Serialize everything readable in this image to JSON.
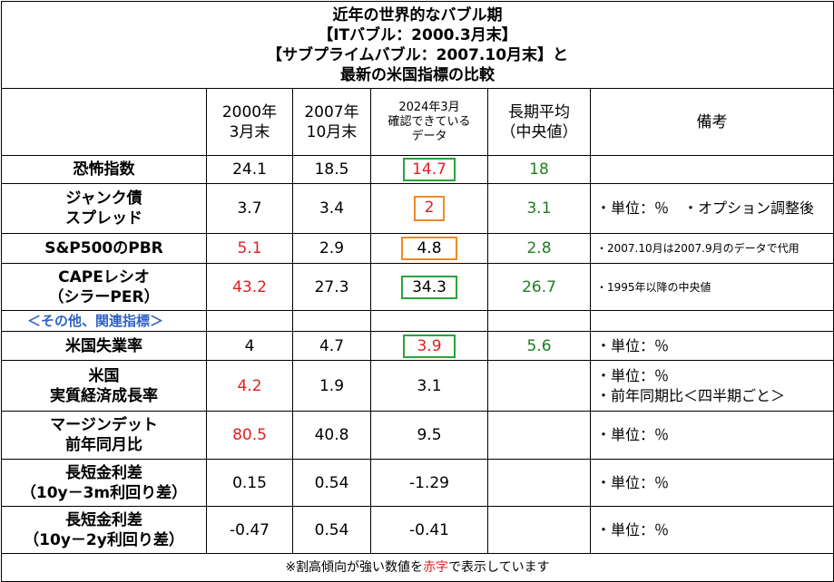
{
  "title": {
    "line1": "近年の世界的なバブル期",
    "line2": "【ITバブル：2000.3月末】",
    "line3": "【サブプライムバブル：2007.10月末】と",
    "line4": "最新の米国指標の比較"
  },
  "headers": {
    "col2000_l1": "2000年",
    "col2000_l2": "3月末",
    "col2007_l1": "2007年",
    "col2007_l2": "10月末",
    "col2024_l1": "2024年3月",
    "col2024_l2": "確認できている",
    "col2024_l3": "データ",
    "longterm_l1": "長期平均",
    "longterm_l2": "（中央値）",
    "notes": "備考"
  },
  "rows": [
    {
      "label_l1": "恐怖指数",
      "label_l2": "",
      "v2000": "24.1",
      "v2007": "18.5",
      "v2024": "14.7",
      "long": "18",
      "note": ""
    },
    {
      "label_l1": "ジャンク債",
      "label_l2": "スプレッド",
      "v2000": "3.7",
      "v2007": "3.4",
      "v2024": "2",
      "long": "3.1",
      "note": "・単位：％　・オプション調整後"
    },
    {
      "label_l1": "S&P500のPBR",
      "label_l2": "",
      "v2000": "5.1",
      "v2007": "2.9",
      "v2024": "4.8",
      "long": "2.8",
      "note": "・2007.10月は2007.9月のデータで代用"
    },
    {
      "label_l1": "CAPEレシオ",
      "label_l2": "（シラーPER）",
      "v2000": "43.2",
      "v2007": "27.3",
      "v2024": "34.3",
      "long": "26.7",
      "note": "・1995年以降の中央値"
    },
    {
      "label_l1": "米国失業率",
      "label_l2": "",
      "v2000": "4",
      "v2007": "4.7",
      "v2024": "3.9",
      "long": "5.6",
      "note": "・単位：％"
    },
    {
      "label_l1": "米国",
      "label_l2": "実質経済成長率",
      "v2000": "4.2",
      "v2007": "1.9",
      "v2024": "3.1",
      "long": "",
      "note": "・単位：％",
      "note2": "・前年同期比＜四半期ごと＞"
    },
    {
      "label_l1": "マージンデット",
      "label_l2": "前年同月比",
      "v2000": "80.5",
      "v2007": "40.8",
      "v2024": "9.5",
      "long": "",
      "note": "・単位：％"
    },
    {
      "label_l1": "長短金利差",
      "label_l2": "（10y－3m利回り差）",
      "v2000": "0.15",
      "v2007": "0.54",
      "v2024": "-1.29",
      "long": "",
      "note": "・単位：％"
    },
    {
      "label_l1": "長短金利差",
      "label_l2": "（10y－2y利回り差）",
      "v2000": "-0.47",
      "v2007": "0.54",
      "v2024": "-0.41",
      "long": "",
      "note": "・単位：％"
    }
  ],
  "section_label": "＜その他、関連指標＞",
  "footer": {
    "pre": "※割高傾向が強い数値を",
    "red": "赤字",
    "post": "で表示しています"
  },
  "colors": {
    "red": "#e02020",
    "green": "#1e7e1e",
    "blue": "#2f62c6",
    "box_green": "#2aa33b",
    "box_orange": "#f08a24"
  }
}
